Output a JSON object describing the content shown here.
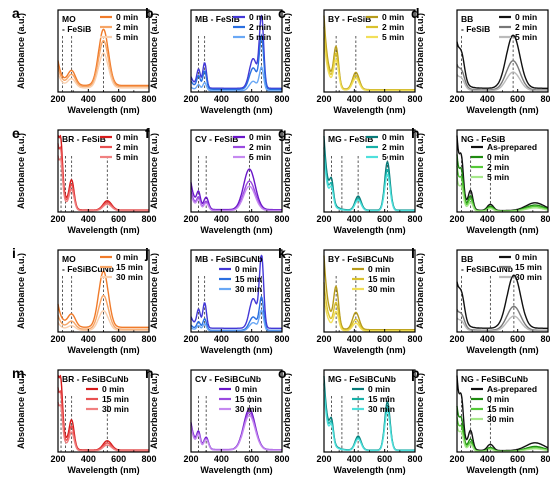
{
  "figure": {
    "panels": [
      {
        "letter": "a",
        "title_lines": [
          "MO",
          "- FeSiB"
        ],
        "legend": [
          "0 min",
          "2 min",
          "5 min"
        ],
        "colors": [
          "#f07b2a",
          "#f6a566",
          "#f9cfae"
        ],
        "peaks": [
          [
            290,
            0.18,
            25
          ],
          [
            500,
            0.72,
            32
          ]
        ],
        "scales": [
          1,
          0.82,
          0.62
        ],
        "base": 0.14,
        "uv": 0.32,
        "dashes": [
          230,
          290,
          500
        ]
      },
      {
        "letter": "b",
        "title_lines": [
          "MB - FeSiB"
        ],
        "legend": [
          "0 min",
          "2 min",
          "5 min"
        ],
        "colors": [
          "#4338d6",
          "#2a6fe0",
          "#6aa8f5"
        ],
        "peaks": [
          [
            250,
            0.22,
            12
          ],
          [
            290,
            0.32,
            12
          ],
          [
            610,
            0.38,
            25
          ],
          [
            665,
            0.92,
            14
          ]
        ],
        "scales": [
          1,
          0.72,
          0.32
        ],
        "base": 0.08,
        "uv": 0.15,
        "dashes": [
          250,
          290,
          665
        ]
      },
      {
        "letter": "c",
        "title_lines": [
          "BY - FeSiB"
        ],
        "legend": [
          "0 min",
          "2 min",
          "5 min"
        ],
        "colors": [
          "#b59a1a",
          "#d9c12d",
          "#f2df5a"
        ],
        "peaks": [
          [
            280,
            0.5,
            16
          ],
          [
            410,
            0.22,
            22
          ]
        ],
        "scales": [
          1,
          0.85,
          0.7
        ],
        "base": 0.05,
        "uv": 0.95,
        "dashes": [
          280,
          410
        ]
      },
      {
        "letter": "d",
        "title_lines": [
          "BB",
          "- FeSiB"
        ],
        "legend": [
          "0 min",
          "2 min",
          "5 min"
        ],
        "colors": [
          "#111111",
          "#777777",
          "#bbbbbb"
        ],
        "peaks": [
          [
            230,
            0.3,
            20
          ],
          [
            570,
            0.68,
            45
          ]
        ],
        "scales": [
          1,
          0.55,
          0.35
        ],
        "base": 0.08,
        "uv": 0.5,
        "dashes": [
          230,
          570
        ]
      },
      {
        "letter": "e",
        "title_lines": [
          "BR - FeSiB"
        ],
        "legend": [
          "0 min",
          "2 min",
          "5 min"
        ],
        "colors": [
          "#d61a1a",
          "#e85050",
          "#f08080"
        ],
        "peaks": [
          [
            220,
            0.45,
            10
          ],
          [
            290,
            0.35,
            16
          ],
          [
            525,
            0.12,
            28
          ]
        ],
        "scales": [
          1,
          0.85,
          0.7
        ],
        "base": 0.04,
        "uv": 0.95,
        "dashes": [
          220,
          250,
          290,
          525
        ]
      },
      {
        "letter": "f",
        "title_lines": [
          "CV - FeSiB"
        ],
        "legend": [
          "0 min",
          "2 min",
          "5 min"
        ],
        "colors": [
          "#6a16c8",
          "#9a4ae0",
          "#c58af0"
        ],
        "peaks": [
          [
            250,
            0.18,
            12
          ],
          [
            300,
            0.15,
            15
          ],
          [
            585,
            0.52,
            38
          ]
        ],
        "scales": [
          1,
          0.72,
          0.6
        ],
        "base": 0.05,
        "uv": 0.35,
        "dashes": [
          250,
          300,
          585
        ]
      },
      {
        "letter": "g",
        "title_lines": [
          "MG - FeSiB"
        ],
        "legend": [
          "0 min",
          "2 min",
          "5 min"
        ],
        "colors": [
          "#087a78",
          "#17b0a8",
          "#4fe0dc"
        ],
        "peaks": [
          [
            250,
            0.25,
            12
          ],
          [
            425,
            0.18,
            20
          ],
          [
            618,
            0.62,
            18
          ]
        ],
        "scales": [
          1,
          0.85,
          0.75
        ],
        "base": 0.04,
        "uv": 0.95,
        "dashes": [
          250,
          318,
          425,
          618
        ]
      },
      {
        "letter": "h",
        "title_lines": [
          "NG - FeSiB"
        ],
        "legend": [
          "As-prepared",
          "0 min",
          "2 min",
          "5 min"
        ],
        "colors": [
          "#111111",
          "#1f8a10",
          "#55c838",
          "#a6e88a"
        ],
        "peaks": [
          [
            230,
            0.38,
            12
          ],
          [
            290,
            0.22,
            14
          ],
          [
            420,
            0.08,
            20
          ],
          [
            715,
            0.1,
            60
          ]
        ],
        "scales": [
          1,
          0.75,
          0.6,
          0.45
        ],
        "base": 0.03,
        "uv": 0.95,
        "dashes": [
          230,
          290,
          420
        ]
      },
      {
        "letter": "i",
        "title_lines": [
          "MO",
          "- FeSiBCuNb"
        ],
        "legend": [
          "0 min",
          "15 min",
          "30 min"
        ],
        "colors": [
          "#f07b2a",
          "#f6a566",
          "#f9cfae"
        ],
        "peaks": [
          [
            290,
            0.16,
            25
          ],
          [
            500,
            0.72,
            32
          ]
        ],
        "scales": [
          1,
          0.6,
          0.35
        ],
        "base": 0.1,
        "uv": 0.3,
        "dashes": [
          230,
          290,
          500
        ]
      },
      {
        "letter": "j",
        "title_lines": [
          "MB - FeSiBCuNb"
        ],
        "legend": [
          "0 min",
          "15 min",
          "30 min"
        ],
        "colors": [
          "#4338d6",
          "#2a6fe0",
          "#6aa8f5"
        ],
        "peaks": [
          [
            250,
            0.22,
            12
          ],
          [
            290,
            0.32,
            12
          ],
          [
            610,
            0.38,
            25
          ],
          [
            665,
            0.92,
            14
          ]
        ],
        "scales": [
          1,
          0.45,
          0.28
        ],
        "base": 0.08,
        "uv": 0.15,
        "dashes": [
          250,
          290,
          665
        ]
      },
      {
        "letter": "k",
        "title_lines": [
          "BY - FeSiBCuNb"
        ],
        "legend": [
          "0 min",
          "15 min",
          "30 min"
        ],
        "colors": [
          "#b59a1a",
          "#d9c12d",
          "#f2df5a"
        ],
        "peaks": [
          [
            280,
            0.5,
            16
          ],
          [
            410,
            0.22,
            22
          ]
        ],
        "scales": [
          1,
          0.65,
          0.45
        ],
        "base": 0.05,
        "uv": 0.95,
        "dashes": [
          280,
          410
        ]
      },
      {
        "letter": "l",
        "title_lines": [
          "BB",
          "- FeSiBCuNb"
        ],
        "legend": [
          "0 min",
          "15 min",
          "30 min"
        ],
        "colors": [
          "#111111",
          "#777777",
          "#bbbbbb"
        ],
        "peaks": [
          [
            230,
            0.3,
            20
          ],
          [
            575,
            0.68,
            45
          ]
        ],
        "scales": [
          1,
          0.45,
          0.28
        ],
        "base": 0.08,
        "uv": 0.5,
        "dashes": [
          230,
          420,
          575
        ]
      },
      {
        "letter": "m",
        "title_lines": [
          "BR - FeSiBCuNb"
        ],
        "legend": [
          "0 min",
          "15 min",
          "30 min"
        ],
        "colors": [
          "#d61a1a",
          "#e85050",
          "#f08080"
        ],
        "peaks": [
          [
            220,
            0.45,
            10
          ],
          [
            290,
            0.35,
            16
          ],
          [
            525,
            0.12,
            28
          ]
        ],
        "scales": [
          1,
          0.8,
          0.62
        ],
        "base": 0.04,
        "uv": 0.95,
        "dashes": [
          220,
          250,
          290,
          525
        ]
      },
      {
        "letter": "n",
        "title_lines": [
          "CV - FeSiBCuNb"
        ],
        "legend": [
          "0 min",
          "15 min",
          "30 min"
        ],
        "colors": [
          "#6a16c8",
          "#9a4ae0",
          "#c58af0"
        ],
        "peaks": [
          [
            250,
            0.18,
            12
          ],
          [
            300,
            0.15,
            15
          ],
          [
            585,
            0.52,
            38
          ]
        ],
        "scales": [
          1,
          0.92,
          0.85
        ],
        "base": 0.05,
        "uv": 0.35,
        "dashes": [
          250,
          300,
          585
        ]
      },
      {
        "letter": "o",
        "title_lines": [
          "MG - FeSiBCuNb"
        ],
        "legend": [
          "0 min",
          "15 min",
          "30 min"
        ],
        "colors": [
          "#087a78",
          "#17b0a8",
          "#4fe0dc"
        ],
        "peaks": [
          [
            250,
            0.25,
            12
          ],
          [
            425,
            0.18,
            20
          ],
          [
            618,
            0.62,
            18
          ]
        ],
        "scales": [
          1,
          0.9,
          0.82
        ],
        "base": 0.04,
        "uv": 0.95,
        "dashes": [
          250,
          318,
          425,
          618
        ]
      },
      {
        "letter": "p",
        "title_lines": [
          "NG - FeSiBCuNb"
        ],
        "legend": [
          "As-prepared",
          "0 min",
          "15 min",
          "30 min"
        ],
        "colors": [
          "#111111",
          "#1f8a10",
          "#55c838",
          "#a6e88a"
        ],
        "peaks": [
          [
            230,
            0.38,
            12
          ],
          [
            290,
            0.22,
            14
          ],
          [
            420,
            0.08,
            20
          ],
          [
            715,
            0.1,
            60
          ]
        ],
        "scales": [
          1,
          0.6,
          0.45,
          0.35
        ],
        "base": 0.03,
        "uv": 0.95,
        "dashes": [
          230,
          290,
          420
        ]
      }
    ]
  },
  "chart_data": {
    "type": "line",
    "xlabel": "Wavelength (nm)",
    "ylabel": "Absorbance (a.u.)",
    "xlim": [
      200,
      800
    ],
    "xticks": [
      200,
      400,
      600,
      800
    ],
    "grid": false
  }
}
